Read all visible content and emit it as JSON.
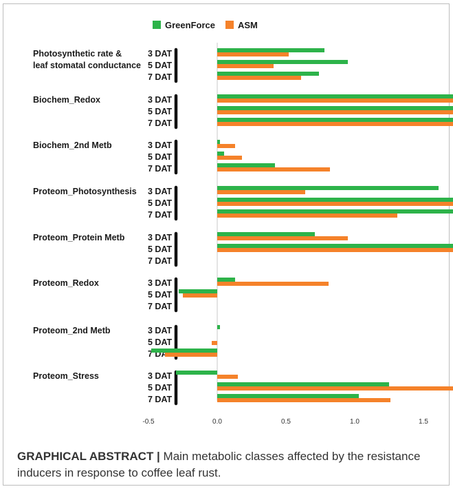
{
  "chart_data": {
    "type": "bar",
    "orientation": "horizontal",
    "legend_position": "top-center",
    "xlim": [
      -0.6,
      3.0
    ],
    "x_ticks": [
      "-0.5",
      "0.0",
      "0.5",
      "1.0",
      "1.5",
      "2.0",
      "2.5",
      "3.0"
    ],
    "x_tick_values": [
      -0.5,
      0.0,
      0.5,
      1.0,
      1.5,
      2.0,
      2.5,
      3.0
    ],
    "colors": {
      "GreenForce": "#2db34a",
      "ASM": "#f5822a"
    },
    "legend": [
      "GreenForce",
      "ASM"
    ],
    "groups": [
      {
        "label_lines": [
          "Photosynthetic rate &",
          "leaf stomatal conductance"
        ],
        "rows": [
          {
            "dat": "3 DAT",
            "GreenForce": 0.78,
            "ASM": 0.52
          },
          {
            "dat": "5 DAT",
            "GreenForce": 0.95,
            "ASM": 0.41
          },
          {
            "dat": "7 DAT",
            "GreenForce": 0.74,
            "ASM": 0.61
          }
        ]
      },
      {
        "label_lines": [
          "Biochem_Redox"
        ],
        "rows": [
          {
            "dat": "3 DAT",
            "GreenForce": 2.44,
            "ASM": 2.01
          },
          {
            "dat": "5 DAT",
            "GreenForce": 2.26,
            "ASM": 2.77
          },
          {
            "dat": "7 DAT",
            "GreenForce": 2.05,
            "ASM": 1.96
          }
        ]
      },
      {
        "label_lines": [
          "Biochem_2nd Metb"
        ],
        "rows": [
          {
            "dat": "3 DAT",
            "GreenForce": 0.02,
            "ASM": 0.13
          },
          {
            "dat": "5 DAT",
            "GreenForce": 0.05,
            "ASM": 0.18
          },
          {
            "dat": "7 DAT",
            "GreenForce": 0.42,
            "ASM": 0.82
          }
        ]
      },
      {
        "label_lines": [
          "Proteom_Photosynthesis"
        ],
        "rows": [
          {
            "dat": "3 DAT",
            "GreenForce": 1.61,
            "ASM": 0.64
          },
          {
            "dat": "5 DAT",
            "GreenForce": 2.52,
            "ASM": 2.66
          },
          {
            "dat": "7 DAT",
            "GreenForce": 1.84,
            "ASM": 1.31
          }
        ]
      },
      {
        "label_lines": [
          "Proteom_Protein Metb"
        ],
        "rows": [
          {
            "dat": "3 DAT",
            "GreenForce": 0.71,
            "ASM": 0.95
          },
          {
            "dat": "5 DAT",
            "GreenForce": 1.77,
            "ASM": 2.05
          },
          {
            "dat": "7 DAT",
            "GreenForce": 0.0,
            "ASM": 0.0
          }
        ]
      },
      {
        "label_lines": [
          "Proteom_Redox"
        ],
        "rows": [
          {
            "dat": "3 DAT",
            "GreenForce": 0.13,
            "ASM": 0.81
          },
          {
            "dat": "5 DAT",
            "GreenForce": -0.28,
            "ASM": -0.25
          },
          {
            "dat": "7 DAT",
            "GreenForce": 0.0,
            "ASM": 0.0
          }
        ]
      },
      {
        "label_lines": [
          "Proteom_2nd Metb"
        ],
        "rows": [
          {
            "dat": "3 DAT",
            "GreenForce": 0.02,
            "ASM": 0.0
          },
          {
            "dat": "5 DAT",
            "GreenForce": 0.0,
            "ASM": -0.04
          },
          {
            "dat": "7 DAT",
            "GreenForce": -0.48,
            "ASM": -0.38
          }
        ]
      },
      {
        "label_lines": [
          "Proteom_Stress"
        ],
        "rows": [
          {
            "dat": "3 DAT",
            "GreenForce": -0.3,
            "ASM": 0.15
          },
          {
            "dat": "5 DAT",
            "GreenForce": 1.25,
            "ASM": 1.89
          },
          {
            "dat": "7 DAT",
            "GreenForce": 1.03,
            "ASM": 1.26
          }
        ]
      }
    ]
  },
  "caption": {
    "lead": "GRAPHICAL ABSTRACT |",
    "text": " Main metabolic classes affected by the resistance inducers in response to coffee leaf rust."
  }
}
